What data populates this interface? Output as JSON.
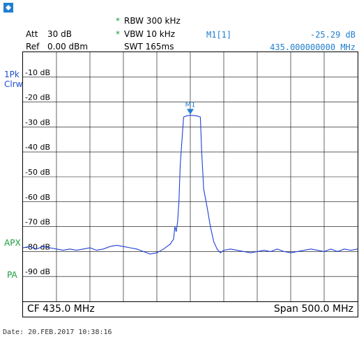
{
  "logo": {
    "icon": "rohde-schwarz-logo-icon"
  },
  "header": {
    "rbw_star": "*",
    "rbw": "RBW 300 kHz",
    "vbw_star": "*",
    "vbw": "VBW 10 kHz",
    "swt": "SWT 165ms",
    "att_label": "Att",
    "att_value": "30 dB",
    "ref_label": "Ref",
    "ref_value": "0.00 dBm",
    "marker_label": "M1[1]",
    "marker_level": "-25.29 dB",
    "marker_freq": "435.000000000 MHz"
  },
  "side": {
    "trace_mode_1": "1Pk",
    "trace_mode_2": "Clrw",
    "apx": "APX",
    "pa": "PA"
  },
  "footer": {
    "center": "CF 435.0 MHz",
    "span": "Span 500.0 MHz"
  },
  "date_line": "Date: 20.FEB.2017  10:38:16",
  "colors": {
    "trace": "#1f3fd8",
    "accent_blue": "#1f7fd0",
    "accent_green": "#1a9a3a",
    "grid": "#000000"
  },
  "chart_data": {
    "type": "line",
    "xlim": [
      185,
      685
    ],
    "ylim": [
      -100,
      0
    ],
    "x_divisions": 10,
    "y_divisions": 10,
    "y_tick_labels": [
      "-10 dB",
      "-20 dB",
      "-30 dB",
      "-40 dB",
      "-50 dB",
      "-60 dB",
      "-70 dB",
      "-80 dB",
      "-90 dB"
    ],
    "y_tick_values": [
      -10,
      -20,
      -30,
      -40,
      -50,
      -60,
      -70,
      -80,
      -90
    ],
    "marker": {
      "label": "M1",
      "x": 435,
      "y": -25.29
    },
    "series": [
      {
        "x": [
          185,
          195,
          205,
          215,
          225,
          235,
          245,
          255,
          265,
          275,
          285,
          295,
          305,
          315,
          325,
          335,
          345,
          355,
          365,
          375,
          385,
          395,
          400,
          405,
          410,
          412,
          414,
          416,
          418,
          420,
          425,
          430,
          435,
          440,
          445,
          450,
          452,
          455,
          460,
          465,
          470,
          475,
          480,
          485,
          495,
          505,
          515,
          525,
          535,
          545,
          555,
          565,
          575,
          585,
          595,
          605,
          615,
          625,
          635,
          645,
          655,
          665,
          675,
          685
        ],
        "y": [
          -78.5,
          -78,
          -79,
          -78,
          -78.5,
          -79,
          -79.5,
          -79,
          -79.5,
          -79,
          -78.5,
          -79.5,
          -79,
          -78,
          -77.5,
          -78,
          -78.5,
          -79,
          -80,
          -81,
          -80.5,
          -79,
          -78,
          -77,
          -75,
          -70,
          -72,
          -68,
          -60,
          -45,
          -26,
          -25.5,
          -25.3,
          -25.4,
          -25.6,
          -26,
          -40,
          -55,
          -62,
          -70,
          -76,
          -79,
          -80.5,
          -79.5,
          -79,
          -79.5,
          -80,
          -80.5,
          -80,
          -79.5,
          -80,
          -79,
          -80,
          -80.5,
          -80,
          -79.5,
          -79,
          -79.5,
          -80,
          -79,
          -80,
          -79,
          -79.5,
          -79
        ]
      }
    ]
  }
}
